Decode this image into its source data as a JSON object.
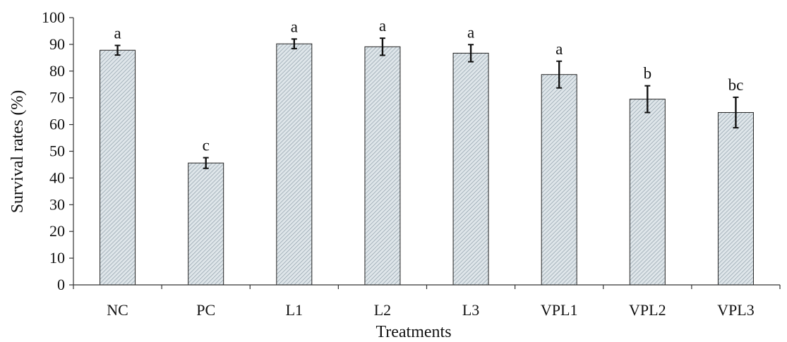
{
  "chart_data": {
    "type": "bar",
    "categories": [
      "NC",
      "PC",
      "L1",
      "L2",
      "L3",
      "VPL1",
      "VPL2",
      "VPL3"
    ],
    "values": [
      87.8,
      45.6,
      90.2,
      89.1,
      86.7,
      78.7,
      69.5,
      64.5
    ],
    "errors": [
      1.8,
      2.0,
      1.8,
      3.2,
      3.2,
      5.0,
      5.0,
      5.7
    ],
    "significance": [
      "a",
      "c",
      "a",
      "a",
      "a",
      "a",
      "b",
      "bc"
    ],
    "xlabel": "Treatments",
    "ylabel": "Survival rates (%)",
    "ylim": [
      0,
      100
    ],
    "yticks": [
      0,
      10,
      20,
      30,
      40,
      50,
      60,
      70,
      80,
      90,
      100
    ],
    "grid": false,
    "legend": "none",
    "colors": {
      "bar_fill": "#dfe6ea",
      "bar_hatch": "#8a9aa5",
      "bar_edge": "#222222",
      "axis": "#333333"
    }
  }
}
